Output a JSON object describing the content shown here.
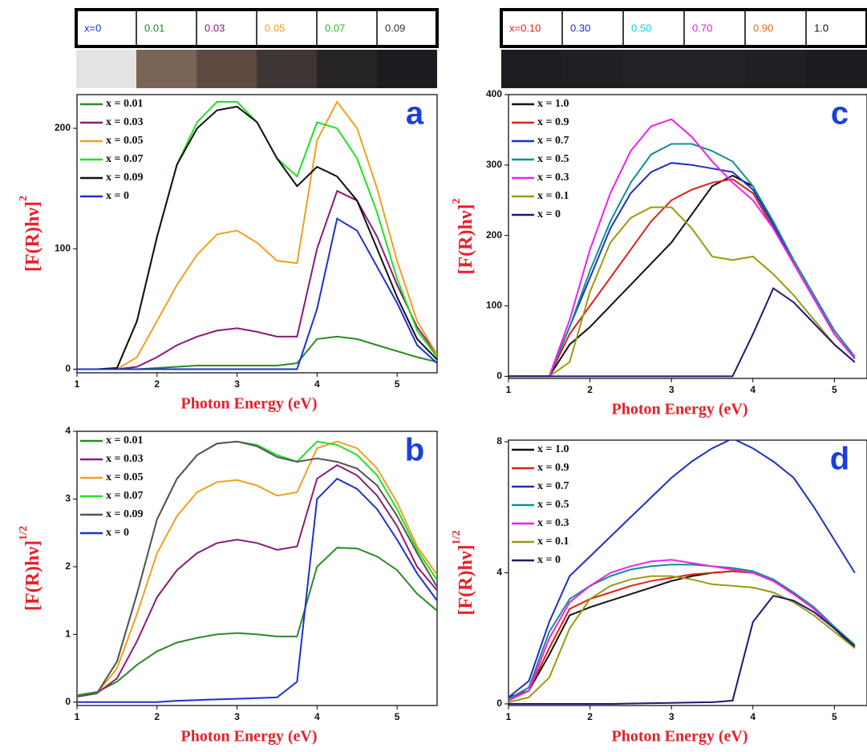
{
  "sample_strips": [
    {
      "labels": [
        {
          "text": "x=0",
          "color": "#1f2fd0",
          "swatch": "#e4e4e2"
        },
        {
          "text": "0.01",
          "color": "#1e8a2a",
          "swatch": "#7a6455"
        },
        {
          "text": "0.03",
          "color": "#8b1a7a",
          "swatch": "#5e4a40"
        },
        {
          "text": "0.05",
          "color": "#f0a020",
          "swatch": "#3e3634"
        },
        {
          "text": "0.07",
          "color": "#22c02a",
          "swatch": "#262426"
        },
        {
          "text": "0.09",
          "color": "#333333",
          "swatch": "#1c1c20"
        }
      ]
    },
    {
      "labels": [
        {
          "text": "x=0.10",
          "color": "#e0201a",
          "swatch": "#1e1e22"
        },
        {
          "text": "0.30",
          "color": "#2030c0",
          "swatch": "#202024"
        },
        {
          "text": "0.50",
          "color": "#10c8e0",
          "swatch": "#222226"
        },
        {
          "text": "0.70",
          "color": "#e020d0",
          "swatch": "#222226"
        },
        {
          "text": "0.90",
          "color": "#d07020",
          "swatch": "#202024"
        },
        {
          "text": "1.0",
          "color": "#111111",
          "swatch": "#1c1c20"
        }
      ]
    }
  ],
  "chart_data": [
    {
      "type": "line",
      "panel_label": "a",
      "xlabel": "Photon Energy (eV)",
      "ylabel": "[F(R)hν]",
      "ylabel_exponent": "2",
      "x": [
        1,
        1.25,
        1.5,
        1.75,
        2,
        2.25,
        2.5,
        2.75,
        3,
        3.25,
        3.5,
        3.75,
        4,
        4.25,
        4.5,
        4.75,
        5,
        5.25,
        5.5
      ],
      "xlim": [
        1,
        5.5
      ],
      "xticks": [
        1,
        2,
        3,
        4,
        5
      ],
      "ylim": [
        -3,
        228
      ],
      "yticks": [
        0,
        100,
        200
      ],
      "series": [
        {
          "name": "x = 0.01",
          "color": "#2a8a2a",
          "values": [
            0,
            0,
            0,
            0,
            1,
            2,
            3,
            3,
            3,
            3,
            3,
            5,
            25,
            27,
            25,
            20,
            15,
            10,
            6
          ]
        },
        {
          "name": "x = 0.03",
          "color": "#8b1a7a",
          "values": [
            0,
            0,
            0,
            2,
            10,
            20,
            27,
            32,
            34,
            31,
            27,
            27,
            100,
            148,
            140,
            110,
            70,
            35,
            12
          ]
        },
        {
          "name": "x = 0.05",
          "color": "#f0a020",
          "values": [
            0,
            0,
            0,
            10,
            40,
            70,
            95,
            112,
            115,
            105,
            90,
            88,
            190,
            222,
            200,
            150,
            90,
            40,
            12
          ]
        },
        {
          "name": "x = 0.07",
          "color": "#22e022",
          "values": [
            0,
            0,
            1,
            40,
            110,
            170,
            205,
            222,
            222,
            205,
            175,
            160,
            205,
            200,
            175,
            130,
            75,
            32,
            10
          ]
        },
        {
          "name": "x = 0.09",
          "color": "#111111",
          "values": [
            0,
            0,
            1,
            40,
            110,
            170,
            200,
            215,
            218,
            205,
            175,
            152,
            168,
            160,
            140,
            100,
            60,
            25,
            8
          ]
        },
        {
          "name": "x = 0",
          "color": "#1f2fd0",
          "values": [
            0,
            0,
            0,
            0,
            0,
            0,
            0,
            0,
            0,
            0,
            0,
            0,
            50,
            125,
            115,
            85,
            55,
            20,
            5
          ]
        }
      ]
    },
    {
      "type": "line",
      "panel_label": "b",
      "xlabel": "Photon Energy (eV)",
      "ylabel": "[F(R)hν]",
      "ylabel_exponent": "1/2",
      "x": [
        1,
        1.25,
        1.5,
        1.75,
        2,
        2.25,
        2.5,
        2.75,
        3,
        3.25,
        3.5,
        3.75,
        4,
        4.25,
        4.5,
        4.75,
        5,
        5.25,
        5.5
      ],
      "xlim": [
        1,
        5.5
      ],
      "xticks": [
        1,
        2,
        3,
        4,
        5
      ],
      "ylim": [
        -0.05,
        4
      ],
      "yticks": [
        0,
        1,
        2,
        3,
        4
      ],
      "series": [
        {
          "name": "x = 0.01",
          "color": "#2a8a2a",
          "values": [
            0.1,
            0.15,
            0.3,
            0.55,
            0.75,
            0.88,
            0.95,
            1.0,
            1.02,
            1.0,
            0.97,
            0.97,
            2.0,
            2.28,
            2.27,
            2.15,
            1.95,
            1.6,
            1.35
          ]
        },
        {
          "name": "x = 0.03",
          "color": "#8b1a7a",
          "values": [
            0.08,
            0.13,
            0.35,
            0.9,
            1.55,
            1.95,
            2.2,
            2.35,
            2.4,
            2.35,
            2.25,
            2.3,
            3.3,
            3.5,
            3.35,
            3.05,
            2.6,
            2.0,
            1.65
          ]
        },
        {
          "name": "x = 0.05",
          "color": "#f0a020",
          "values": [
            0.08,
            0.13,
            0.5,
            1.3,
            2.2,
            2.75,
            3.1,
            3.25,
            3.28,
            3.2,
            3.05,
            3.1,
            3.75,
            3.85,
            3.75,
            3.45,
            2.95,
            2.3,
            1.88
          ]
        },
        {
          "name": "x = 0.07",
          "color": "#22e022",
          "values": [
            0.08,
            0.13,
            0.6,
            1.6,
            2.7,
            3.3,
            3.65,
            3.82,
            3.85,
            3.8,
            3.65,
            3.55,
            3.85,
            3.8,
            3.65,
            3.35,
            2.85,
            2.25,
            1.8
          ]
        },
        {
          "name": "x = 0.09",
          "color": "#555555",
          "values": [
            0.08,
            0.13,
            0.6,
            1.6,
            2.7,
            3.3,
            3.65,
            3.82,
            3.85,
            3.78,
            3.62,
            3.55,
            3.6,
            3.55,
            3.45,
            3.2,
            2.75,
            2.2,
            1.7
          ]
        },
        {
          "name": "x = 0",
          "color": "#1f2fd0",
          "values": [
            0,
            0,
            0,
            0,
            0,
            0.02,
            0.03,
            0.04,
            0.05,
            0.06,
            0.07,
            0.3,
            3.0,
            3.3,
            3.15,
            2.85,
            2.4,
            1.9,
            1.5
          ]
        }
      ]
    },
    {
      "type": "line",
      "panel_label": "c",
      "xlabel": "Photon Energy (eV)",
      "ylabel": "[F(R)hν]",
      "ylabel_exponent": "2",
      "x": [
        1,
        1.25,
        1.5,
        1.75,
        2,
        2.25,
        2.5,
        2.75,
        3,
        3.25,
        3.5,
        3.75,
        4,
        4.25,
        4.5,
        4.75,
        5,
        5.25
      ],
      "xlim": [
        1,
        5.4
      ],
      "xticks": [
        1,
        2,
        3,
        4,
        5
      ],
      "ylim": [
        -3,
        400
      ],
      "yticks": [
        0,
        100,
        200,
        300,
        400
      ],
      "series": [
        {
          "name": "x = 1.0",
          "color": "#111111",
          "values": [
            0,
            0,
            0,
            45,
            70,
            100,
            130,
            160,
            190,
            230,
            270,
            285,
            270,
            215,
            160,
            110,
            60,
            25
          ]
        },
        {
          "name": "x = 0.9",
          "color": "#e0201a",
          "values": [
            0,
            0,
            0,
            60,
            100,
            140,
            180,
            220,
            250,
            265,
            275,
            280,
            260,
            210,
            160,
            110,
            60,
            25
          ]
        },
        {
          "name": "x = 0.7",
          "color": "#2030c0",
          "values": [
            0,
            0,
            0,
            70,
            140,
            210,
            260,
            290,
            303,
            300,
            295,
            290,
            265,
            215,
            160,
            110,
            60,
            25
          ]
        },
        {
          "name": "x = 0.5",
          "color": "#109090",
          "values": [
            0,
            0,
            0,
            70,
            150,
            220,
            275,
            315,
            330,
            330,
            320,
            305,
            270,
            220,
            165,
            115,
            65,
            28
          ]
        },
        {
          "name": "x = 0.3",
          "color": "#f020f0",
          "values": [
            0,
            0,
            0,
            80,
            180,
            260,
            320,
            355,
            365,
            340,
            305,
            275,
            250,
            210,
            160,
            110,
            60,
            25
          ]
        },
        {
          "name": "x = 0.1",
          "color": "#9a9a10",
          "values": [
            0,
            0,
            0,
            20,
            120,
            190,
            225,
            240,
            240,
            210,
            170,
            165,
            170,
            145,
            115,
            80,
            45,
            20
          ]
        },
        {
          "name": "x = 0",
          "color": "#1a1a70",
          "values": [
            0,
            0,
            0,
            0,
            0,
            0,
            0,
            0,
            0,
            0,
            0,
            0,
            60,
            125,
            105,
            75,
            45,
            20
          ]
        }
      ]
    },
    {
      "type": "line",
      "panel_label": "d",
      "xlabel": "Photon Energy (eV)",
      "ylabel": "[F(R)hν]",
      "ylabel_exponent": "1/2",
      "x": [
        1,
        1.25,
        1.5,
        1.75,
        2,
        2.25,
        2.5,
        2.75,
        3,
        3.25,
        3.5,
        3.75,
        4,
        4.25,
        4.5,
        4.75,
        5,
        5.25
      ],
      "xlim": [
        1,
        5.4
      ],
      "xticks": [
        1,
        2,
        3,
        4,
        5
      ],
      "ylim": [
        -0.05,
        8.05
      ],
      "yticks": [
        0,
        4,
        8
      ],
      "series": [
        {
          "name": "x = 1.0",
          "color": "#111111",
          "values": [
            0.2,
            0.4,
            1.5,
            2.7,
            2.95,
            3.15,
            3.35,
            3.55,
            3.75,
            3.9,
            4.0,
            4.05,
            4.0,
            3.75,
            3.35,
            2.9,
            2.3,
            1.7
          ]
        },
        {
          "name": "x = 0.9",
          "color": "#e0201a",
          "values": [
            0.15,
            0.4,
            1.7,
            2.9,
            3.2,
            3.4,
            3.6,
            3.75,
            3.85,
            3.95,
            4.0,
            4.05,
            4.0,
            3.75,
            3.35,
            2.9,
            2.3,
            1.75
          ]
        },
        {
          "name": "x = 0.7",
          "color": "#2030c0",
          "values": [
            0.2,
            0.7,
            2.5,
            3.9,
            4.5,
            5.1,
            5.7,
            6.3,
            6.9,
            7.4,
            7.8,
            8.1,
            7.8,
            7.4,
            6.9,
            6.0,
            5.0,
            4.0
          ]
        },
        {
          "name": "x = 0.5",
          "color": "#109090",
          "values": [
            0.15,
            0.5,
            2.2,
            3.2,
            3.6,
            3.9,
            4.1,
            4.2,
            4.25,
            4.25,
            4.2,
            4.15,
            4.05,
            3.8,
            3.4,
            2.95,
            2.35,
            1.8
          ]
        },
        {
          "name": "x = 0.3",
          "color": "#f020f0",
          "values": [
            0.1,
            0.4,
            2.0,
            3.1,
            3.6,
            4.0,
            4.2,
            4.35,
            4.4,
            4.3,
            4.2,
            4.1,
            4.0,
            3.75,
            3.35,
            2.9,
            2.3,
            1.75
          ]
        },
        {
          "name": "x = 0.1",
          "color": "#9a9a10",
          "values": [
            0.05,
            0.2,
            0.8,
            2.3,
            3.2,
            3.6,
            3.8,
            3.9,
            3.9,
            3.8,
            3.65,
            3.6,
            3.55,
            3.4,
            3.1,
            2.7,
            2.2,
            1.7
          ]
        },
        {
          "name": "x = 0",
          "color": "#1a1a70",
          "values": [
            0,
            0,
            0,
            0,
            0,
            0,
            0.01,
            0.02,
            0.03,
            0.04,
            0.05,
            0.1,
            2.5,
            3.3,
            3.15,
            2.8,
            2.3,
            1.75
          ]
        }
      ]
    }
  ]
}
